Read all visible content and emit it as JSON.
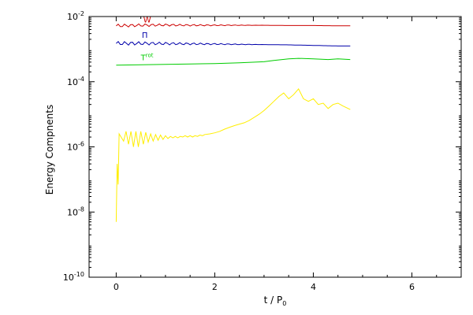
{
  "chart_data": {
    "type": "line",
    "xlabel": "t / P",
    "xlabel_sub": "0",
    "ylabel": "Energy Compnents",
    "xlim": [
      -0.55,
      7.0
    ],
    "ylim": [
      1e-10,
      0.01
    ],
    "yscale": "log",
    "x_ticks": [
      0,
      2,
      4,
      6
    ],
    "x_tick_labels": [
      "0",
      "2",
      "4",
      "6"
    ],
    "y_ticks": [
      1e-10,
      1e-08,
      1e-06,
      0.0001,
      0.01
    ],
    "y_tick_labels": [
      {
        "base": "10",
        "exp": "-10"
      },
      {
        "base": "10",
        "exp": "-8"
      },
      {
        "base": "10",
        "exp": "-6"
      },
      {
        "base": "10",
        "exp": "-4"
      },
      {
        "base": "10",
        "exp": "-2"
      }
    ],
    "annotations": [
      {
        "text": "W",
        "x": 0.55,
        "y": 0.0065,
        "color": "#cc0000"
      },
      {
        "text": "Π",
        "x": 0.52,
        "y": 0.0022,
        "color": "#0000aa"
      },
      {
        "text": "T",
        "x": 0.5,
        "y": 0.00045,
        "color": "#00cc00",
        "sup": "rot"
      }
    ],
    "series": [
      {
        "color": "#cc0000",
        "wiggle": 0.05,
        "x": [
          0.0,
          0.5,
          1.0,
          1.5,
          2.0,
          2.5,
          3.0,
          3.5,
          4.0,
          4.5,
          4.75
        ],
        "y": [
          0.0052,
          0.0054,
          0.0055,
          0.0054,
          0.0054,
          0.0054,
          0.0054,
          0.0053,
          0.0053,
          0.0052,
          0.0052
        ]
      },
      {
        "color": "#0000aa",
        "wiggle": 0.06,
        "x": [
          0.0,
          0.5,
          1.0,
          1.5,
          2.0,
          2.5,
          3.0,
          3.5,
          4.0,
          4.5,
          4.75
        ],
        "y": [
          0.0015,
          0.0015,
          0.00148,
          0.00145,
          0.00143,
          0.0014,
          0.00138,
          0.00135,
          0.0013,
          0.00125,
          0.00125
        ]
      },
      {
        "color": "#00cc00",
        "wiggle": 0.0,
        "x": [
          0.0,
          0.5,
          1.0,
          1.5,
          2.0,
          2.5,
          3.0,
          3.2,
          3.5,
          3.7,
          4.0,
          4.3,
          4.5,
          4.75
        ],
        "y": [
          0.00032,
          0.00033,
          0.00034,
          0.00035,
          0.00036,
          0.00038,
          0.00041,
          0.00045,
          0.0005,
          0.00052,
          0.0005,
          0.00048,
          0.0005,
          0.00048
        ]
      },
      {
        "color": "#ffee00",
        "wiggle": 0.0,
        "x": [
          0.0,
          0.02,
          0.04,
          0.06,
          0.1,
          0.15,
          0.2,
          0.25,
          0.3,
          0.35,
          0.4,
          0.45,
          0.5,
          0.55,
          0.6,
          0.65,
          0.7,
          0.75,
          0.8,
          0.85,
          0.9,
          0.95,
          1.0,
          1.05,
          1.1,
          1.15,
          1.2,
          1.25,
          1.3,
          1.35,
          1.4,
          1.45,
          1.5,
          1.55,
          1.6,
          1.65,
          1.7,
          1.75,
          1.8,
          1.9,
          2.0,
          2.1,
          2.2,
          2.3,
          2.4,
          2.5,
          2.6,
          2.7,
          2.8,
          2.9,
          3.0,
          3.1,
          3.2,
          3.3,
          3.4,
          3.5,
          3.6,
          3.7,
          3.8,
          3.9,
          4.0,
          4.1,
          4.2,
          4.3,
          4.4,
          4.5,
          4.6,
          4.75
        ],
        "y": [
          5e-09,
          3e-07,
          7e-08,
          2.5e-06,
          2e-06,
          1.5e-06,
          3e-06,
          1.2e-06,
          3e-06,
          1e-06,
          3e-06,
          1e-06,
          3e-06,
          1.2e-06,
          2.8e-06,
          1.4e-06,
          2.5e-06,
          1.5e-06,
          2.4e-06,
          1.6e-06,
          2.3e-06,
          1.7e-06,
          2.2e-06,
          1.8e-06,
          2.1e-06,
          1.9e-06,
          2.1e-06,
          1.9e-06,
          2.1e-06,
          2e-06,
          2.2e-06,
          2e-06,
          2.2e-06,
          2e-06,
          2.2e-06,
          2.1e-06,
          2.3e-06,
          2.2e-06,
          2.4e-06,
          2.5e-06,
          2.7e-06,
          3e-06,
          3.5e-06,
          4e-06,
          4.5e-06,
          5e-06,
          5.5e-06,
          6.5e-06,
          8e-06,
          1e-05,
          1.3e-05,
          1.8e-05,
          2.5e-05,
          3.5e-05,
          4.5e-05,
          3e-05,
          4e-05,
          6e-05,
          3e-05,
          2.5e-05,
          3e-05,
          2e-05,
          2.2e-05,
          1.5e-05,
          2e-05,
          2.2e-05,
          1.8e-05,
          1.4e-05
        ]
      }
    ]
  }
}
